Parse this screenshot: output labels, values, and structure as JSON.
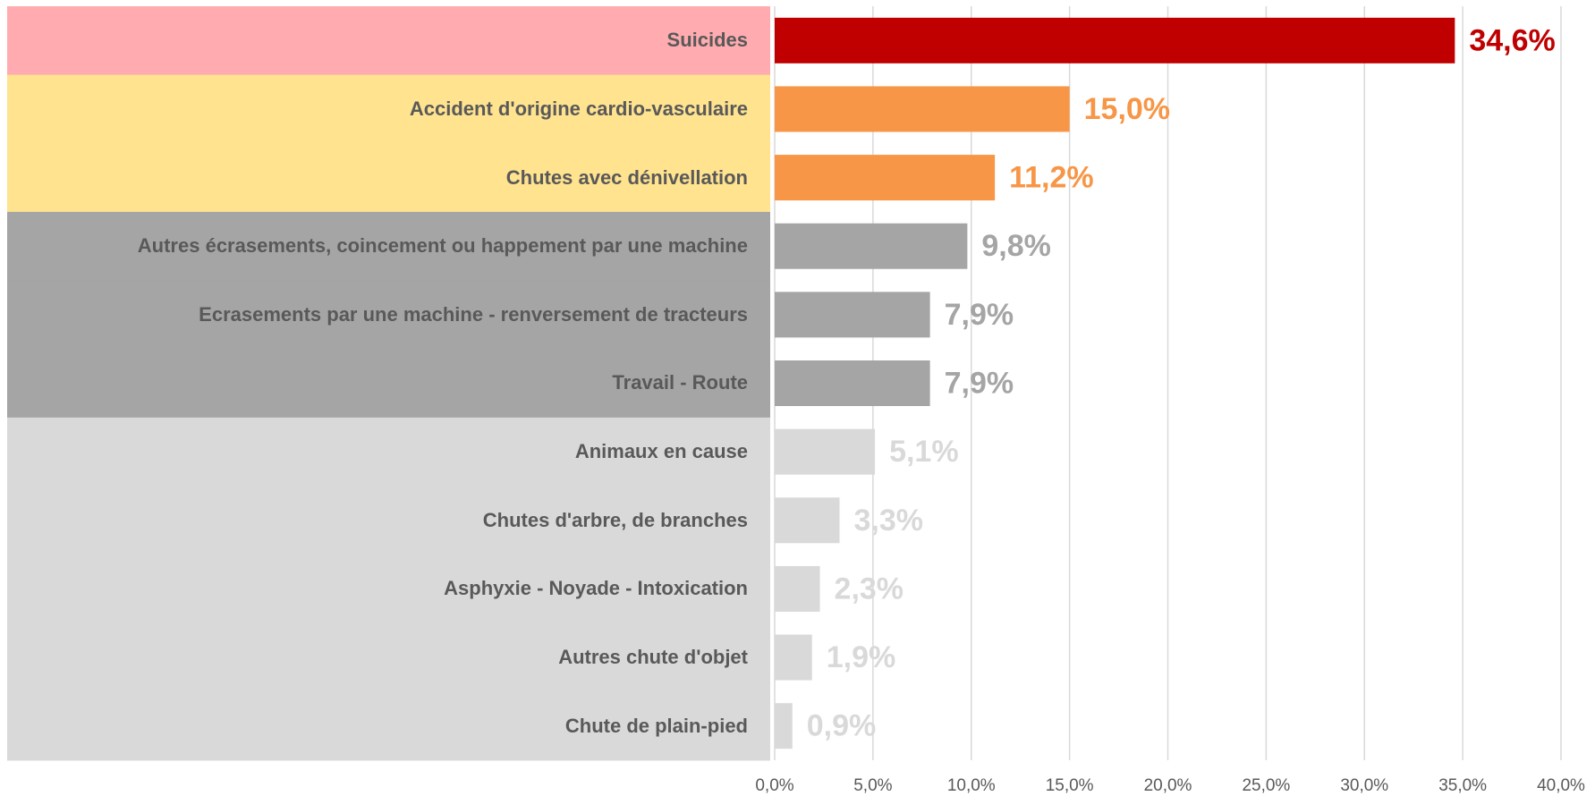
{
  "chart_data": {
    "type": "bar",
    "orientation": "horizontal",
    "categories": [
      "Suicides",
      "Accident d'origine cardio-vasculaire",
      "Chutes avec dénivellation",
      "Autres écrasements, coincement ou happement par une machine",
      "Ecrasements par une machine - renversement de tracteurs",
      "Travail - Route",
      "Animaux en cause",
      "Chutes d'arbre, de branches",
      "Asphyxie - Noyade - Intoxication",
      "Autres chute d'objet",
      "Chute de plain-pied"
    ],
    "values": [
      34.6,
      15.0,
      11.2,
      9.8,
      7.9,
      7.9,
      5.1,
      3.3,
      2.3,
      1.9,
      0.9
    ],
    "value_labels": [
      "34,6%",
      "15,0%",
      "11,2%",
      "9,8%",
      "7,9%",
      "7,9%",
      "5,1%",
      "3,3%",
      "2,3%",
      "1,9%",
      "0,9%"
    ],
    "colors": [
      "#c00000",
      "#f79646",
      "#f79646",
      "#a5a5a5",
      "#a5a5a5",
      "#a5a5a5",
      "#d9d9d9",
      "#d9d9d9",
      "#d9d9d9",
      "#d9d9d9",
      "#d9d9d9"
    ],
    "label_background_colors": [
      "#ffabaf",
      "#ffe38f",
      "#ffe38f",
      "#a5a5a5",
      "#a5a5a5",
      "#a5a5a5",
      "#d9d9d9",
      "#d9d9d9",
      "#d9d9d9",
      "#d9d9d9",
      "#d9d9d9"
    ],
    "xlim": [
      0,
      40
    ],
    "xticks": [
      {
        "value": 0,
        "label": "0,0%"
      },
      {
        "value": 5,
        "label": "5,0%"
      },
      {
        "value": 10,
        "label": "10,0%"
      },
      {
        "value": 15,
        "label": "15,0%"
      },
      {
        "value": 20,
        "label": "20,0%"
      },
      {
        "value": 25,
        "label": "25,0%"
      },
      {
        "value": 30,
        "label": "30,0%"
      },
      {
        "value": 35,
        "label": "35,0%"
      },
      {
        "value": 40,
        "label": "40,0%"
      }
    ],
    "grid": true
  }
}
